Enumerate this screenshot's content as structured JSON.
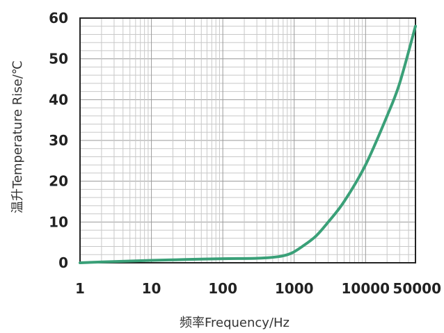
{
  "chart_data": {
    "type": "line",
    "title": "",
    "xlabel": "频率Frequency/Hz",
    "ylabel": "温升Temperature Rise/℃",
    "x_scale": "log",
    "xlim": [
      1,
      50000
    ],
    "ylim": [
      0,
      60
    ],
    "x_ticks": [
      1,
      10,
      100,
      1000,
      10000,
      50000
    ],
    "x_tick_labels": [
      "1",
      "10",
      "100",
      "1000",
      "10000",
      "50000"
    ],
    "y_ticks": [
      0,
      10,
      20,
      30,
      40,
      50,
      60
    ],
    "y_tick_labels": [
      "0",
      "10",
      "20",
      "30",
      "40",
      "50",
      "60"
    ],
    "grid": true,
    "series": [
      {
        "color": "#3aa078",
        "x": [
          1,
          3,
          10,
          30,
          100,
          300,
          600,
          900,
          1300,
          2000,
          3000,
          5000,
          10000,
          20000,
          30000,
          50000
        ],
        "y": [
          0,
          0.3,
          0.6,
          0.8,
          1.0,
          1.1,
          1.5,
          2.3,
          4.0,
          6.5,
          10.0,
          15.0,
          24.0,
          36.0,
          44.0,
          58.0
        ]
      }
    ]
  }
}
